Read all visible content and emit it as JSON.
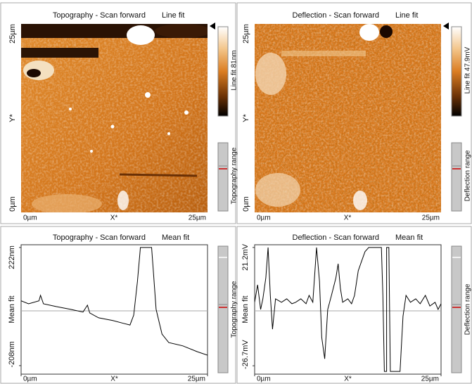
{
  "image_panels": [
    {
      "title": "Topography - Scan forward",
      "fit": "Line fit",
      "y_top": "25µm",
      "y_bottom": "0µm",
      "y_label": "Y*",
      "x_left": "0µm",
      "x_label": "X*",
      "x_right": "25µm",
      "colorbar_label": "Line fit 81nm",
      "range_label": "Topography range"
    },
    {
      "title": "Deflection - Scan forward",
      "fit": "Line fit",
      "y_top": "25µm",
      "y_bottom": "0µm",
      "y_label": "Y*",
      "x_left": "0µm",
      "x_label": "X*",
      "x_right": "25µm",
      "colorbar_label": "Line fit 47.9mV",
      "range_label": "Deflection range"
    }
  ],
  "chart_data": [
    {
      "type": "line",
      "title": "Topography - Scan forward",
      "fit": "Mean fit",
      "color": "#000000",
      "x": [
        0,
        1,
        2.4,
        2.6,
        3,
        4.7,
        6.6,
        8.3,
        8.9,
        9.2,
        10.4,
        12.3,
        13.7,
        14.6,
        15.1,
        15.6,
        16,
        17.5,
        17.7,
        18.1,
        18.9,
        19.8,
        21.7,
        23.6,
        25
      ],
      "values": [
        28,
        17,
        28,
        48,
        17,
        7,
        -3,
        -13,
        12,
        -16,
        -34,
        -44,
        -54,
        -60,
        -24,
        99,
        222,
        222,
        150,
        -3,
        -93,
        -124,
        -136,
        -157,
        -170
      ],
      "xlim": [
        0,
        25
      ],
      "xticks": [
        {
          "value": 0,
          "label": "0µm"
        },
        {
          "value": 25,
          "label": "25µm"
        }
      ],
      "xlabel": "X*",
      "ylim": [
        -239,
        232
      ],
      "yticks": [
        {
          "value": -208,
          "label": "-208nm"
        },
        {
          "value": 222,
          "label": "222nm"
        }
      ],
      "ylabel": "Mean fit",
      "range_label": "Topography range"
    },
    {
      "type": "line",
      "title": "Deflection - Scan forward",
      "fit": "Mean fit",
      "color": "#000000",
      "x": [
        0,
        0.4,
        0.8,
        1.1,
        1.5,
        1.8,
        2.1,
        2.4,
        2.8,
        3.6,
        4.3,
        5.0,
        5.5,
        6.2,
        6.9,
        7.3,
        7.8,
        8.3,
        8.7,
        9.0,
        9.4,
        9.8,
        10.3,
        10.9,
        11.2,
        11.5,
        11.8,
        12.5,
        13.0,
        13.4,
        13.9,
        14.4,
        14.8,
        15.3,
        17.0,
        17.2,
        17.4,
        17.7,
        17.7,
        18.0,
        18.2,
        19.5,
        19.9,
        20.3,
        20.9,
        21.6,
        22.2,
        22.9,
        23.5,
        24.2,
        24.6,
        25
      ],
      "values": [
        -1.0,
        6.1,
        -3.9,
        0.4,
        8.9,
        21.2,
        1.8,
        -11.9,
        0.4,
        -1.0,
        0.4,
        -1.6,
        -1.0,
        0.4,
        -1.6,
        1.8,
        -1.0,
        21.2,
        7.5,
        -15.3,
        -23.9,
        -3.9,
        1.8,
        8.9,
        14.6,
        4.7,
        -1.0,
        0.4,
        -1.6,
        1.8,
        11.8,
        16.1,
        19.5,
        21.2,
        21.2,
        1.8,
        -29.0,
        -29.0,
        21.2,
        21.2,
        -29.0,
        -29.0,
        -6.7,
        1.8,
        -1.0,
        0.4,
        -1.6,
        1.8,
        -2.5,
        -1.0,
        -3.9,
        -1.6
      ],
      "xlim": [
        0,
        25
      ],
      "xticks": [
        {
          "value": 0,
          "label": "0µm"
        },
        {
          "value": 25,
          "label": "25µm"
        }
      ],
      "xlabel": "X*",
      "ylim": [
        -30.1,
        22.3
      ],
      "yticks": [
        {
          "value": -26.7,
          "label": "-26.7mV"
        },
        {
          "value": 21.2,
          "label": "21.2mV"
        }
      ],
      "ylabel": "Mean fit",
      "range_label": "Deflection range"
    }
  ]
}
